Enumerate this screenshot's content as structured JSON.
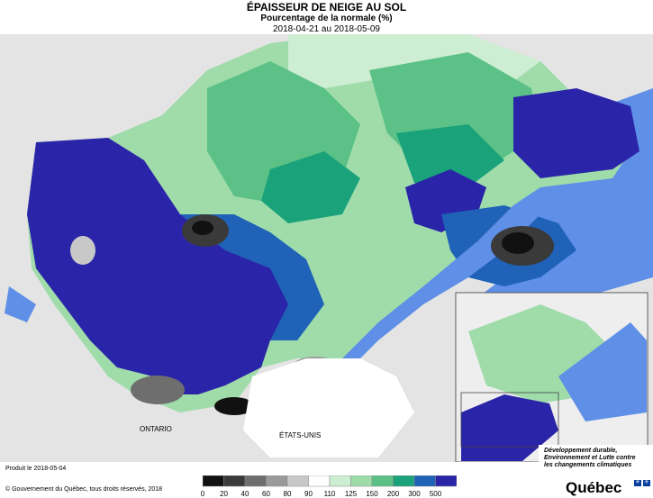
{
  "title": "ÉPAISSEUR DE NEIGE AU SOL",
  "subtitle": "Pourcentage de la normale (%)",
  "period": "2018-04-21 au 2018-05-09",
  "produced": "Produit le 2018-05-04",
  "copyright": "© Gouvernement du Québec, tous droits réservés, 2018",
  "labels": {
    "ontario": "ONTARIO",
    "usa": "ÉTATS-UNIS"
  },
  "logo": {
    "text": "Développement durable, Environnement et Lutte contre les changements climatiques",
    "word": "Québec"
  },
  "legend": {
    "labels": [
      "0",
      "20",
      "40",
      "60",
      "80",
      "90",
      "110",
      "125",
      "150",
      "200",
      "300",
      "500"
    ],
    "colors": [
      "#111111",
      "#3a3a3a",
      "#6e6e6e",
      "#9a9a9a",
      "#c8c8c8",
      "#ffffff",
      "#cdeed2",
      "#9fdcaa",
      "#5cc187",
      "#1aa27a",
      "#1f62b8",
      "#2a24a8"
    ]
  },
  "colors": {
    "water": "#5f8fe6",
    "background_land": "#e4e4e4",
    "snow_100": "#ffffff",
    "snow_110_125": "#cdeed2",
    "snow_125_150": "#9fdcaa",
    "snow_150_200": "#5cc187",
    "snow_200_300": "#1aa27a",
    "snow_300_500": "#1f62b8",
    "snow_500": "#2a24a8"
  }
}
